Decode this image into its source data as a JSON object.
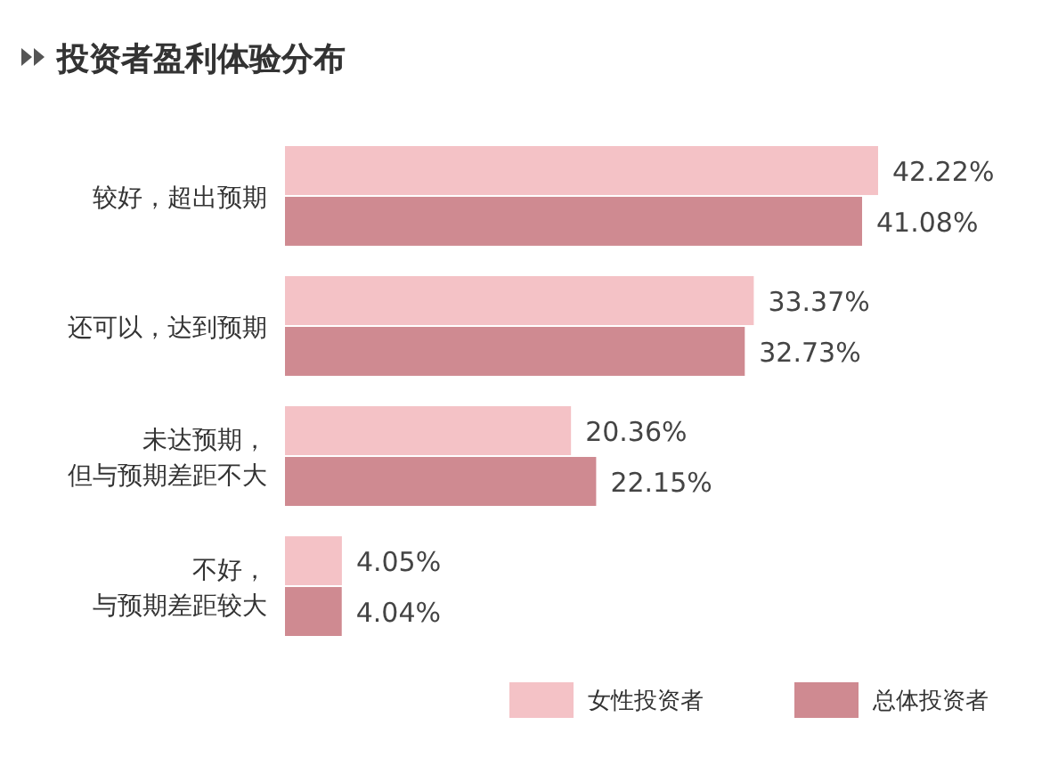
{
  "chart_data": {
    "type": "bar",
    "orientation": "horizontal",
    "title": "投资者盈利体验分布",
    "categories": [
      "较好，超出预期",
      "还可以，达到预期",
      "未达预期，但与预期差距不大",
      "不好，与预期差距较大"
    ],
    "series": [
      {
        "name": "女性投资者",
        "color": "#f4c2c6",
        "values": [
          42.22,
          33.37,
          20.36,
          4.05
        ],
        "value_labels": [
          "42.22%",
          "33.37%",
          "20.36%",
          "4.05%"
        ]
      },
      {
        "name": "总体投资者",
        "color": "#cf8a91",
        "values": [
          41.08,
          32.73,
          22.15,
          4.04
        ],
        "value_labels": [
          "41.08%",
          "32.73%",
          "22.15%",
          "4.04%"
        ]
      }
    ],
    "legend": "bottom right"
  }
}
